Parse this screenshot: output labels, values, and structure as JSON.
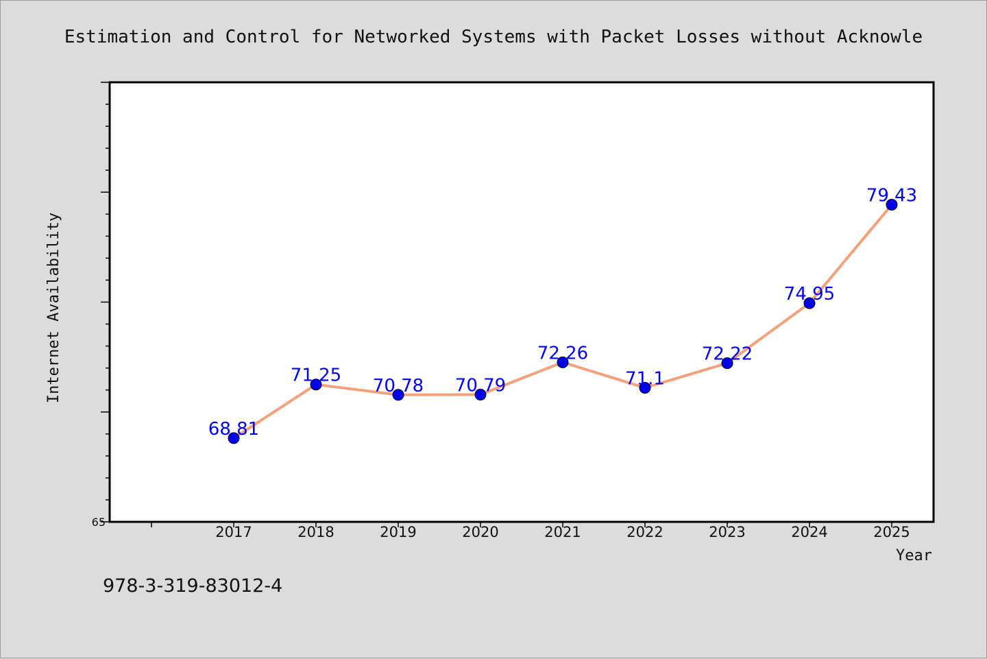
{
  "chart_data": {
    "type": "line",
    "title": "Estimation and Control for Networked Systems with Packet Losses without Acknowle",
    "xlabel": "Year",
    "ylabel": "Internet Availability",
    "categories": [
      "2017",
      "2018",
      "2019",
      "2020",
      "2021",
      "2022",
      "2023",
      "2024",
      "2025"
    ],
    "series": [
      {
        "values": [
          68.81,
          71.25,
          70.78,
          70.79,
          72.26,
          71.1,
          72.22,
          74.95,
          79.43
        ],
        "color": "#f4a07a",
        "marker_color": "#0000ee"
      }
    ],
    "data_labels": [
      "68.81",
      "71.25",
      "70.78",
      "70.79",
      "72.26",
      "71.1",
      "72.22",
      "74.95",
      "79.43"
    ],
    "y_tick_labels": [
      "65"
    ],
    "ylim": [
      65,
      85
    ],
    "grid": false,
    "legend": "none"
  },
  "footer": {
    "isbn": "978-3-319-83012-4"
  },
  "colors": {
    "background": "#dcdcdc",
    "plot_background": "#ffffff",
    "data_label": "#0000ff"
  }
}
